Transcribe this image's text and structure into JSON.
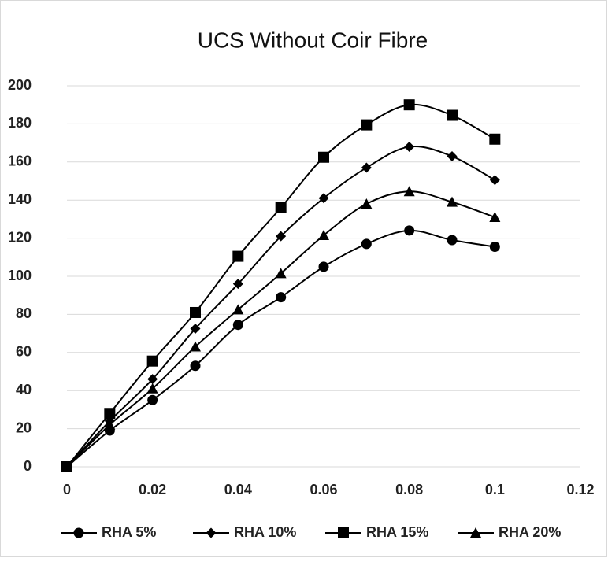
{
  "chart_data": {
    "type": "line",
    "title": "UCS Without Coir Fibre",
    "x": [
      0,
      0.01,
      0.02,
      0.03,
      0.04,
      0.05,
      0.06,
      0.07,
      0.08,
      0.09,
      0.1
    ],
    "series": [
      {
        "name": "RHA 5%",
        "color": "#000000",
        "marker": "circle",
        "values": [
          0,
          19,
          35,
          53,
          74.5,
          89,
          105,
          117,
          124,
          119,
          115.5
        ]
      },
      {
        "name": "RHA 10%",
        "color": "#000000",
        "marker": "diamond",
        "values": [
          0,
          24,
          46,
          72.5,
          96,
          121,
          141,
          157,
          168,
          163,
          150.5
        ]
      },
      {
        "name": "RHA 15%",
        "color": "#000000",
        "marker": "square",
        "values": [
          0,
          28,
          55.5,
          81,
          110.5,
          136,
          162.5,
          179.5,
          190,
          184.5,
          172
        ]
      },
      {
        "name": "RHA 20%",
        "color": "#000000",
        "marker": "triangle",
        "values": [
          0,
          22,
          41,
          63,
          82.5,
          101.5,
          121.5,
          138,
          144.5,
          139,
          131
        ]
      }
    ],
    "xlim": [
      0,
      0.12
    ],
    "xticks": [
      0,
      0.02,
      0.04,
      0.06,
      0.08,
      0.1,
      0.12
    ],
    "ylim": [
      0,
      200
    ],
    "yticks": [
      0,
      20,
      40,
      60,
      80,
      100,
      120,
      140,
      160,
      180,
      200
    ],
    "grid": true,
    "smooth": true,
    "legend": "bottom"
  }
}
